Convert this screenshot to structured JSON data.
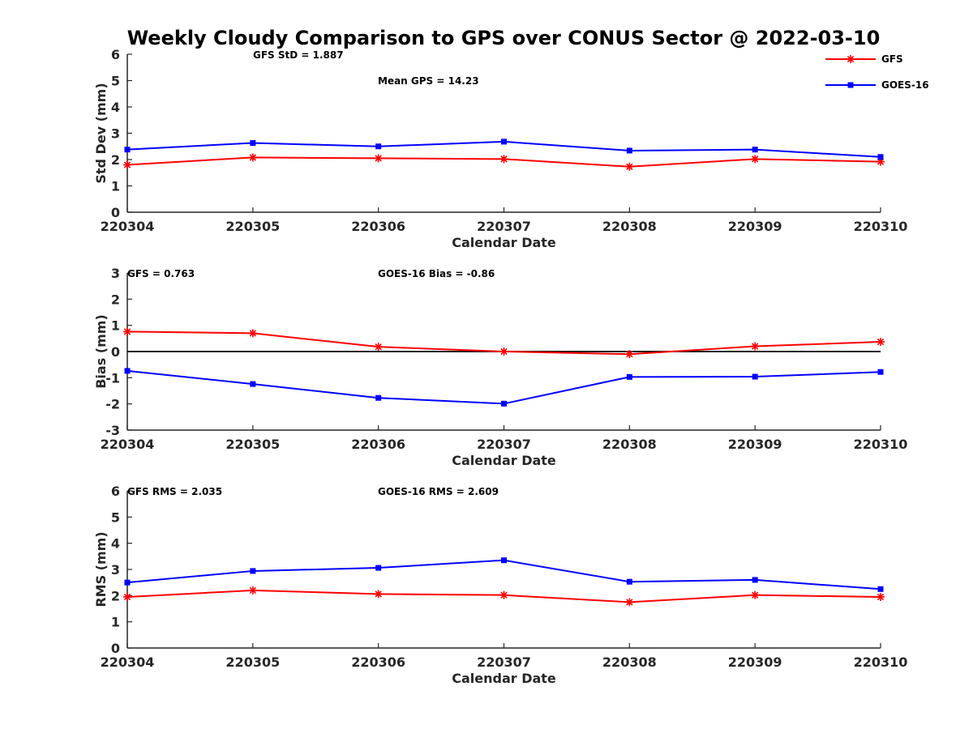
{
  "chart_data": {
    "title": "Weekly Cloudy Comparison to GPS over CONUS Sector @ 2022-03-10",
    "legend": {
      "position": "top-right",
      "entries": [
        {
          "name": "GFS",
          "color": "#ff0000",
          "marker": "star"
        },
        {
          "name": "GOES-16",
          "color": "#0000ff",
          "marker": "square"
        }
      ]
    },
    "panels": [
      {
        "type": "line",
        "xlabel": "Calendar Date",
        "ylabel": "Std Dev (mm)",
        "ylim": [
          0,
          6
        ],
        "yticks": [
          "0",
          "1",
          "2",
          "3",
          "4",
          "5",
          "6"
        ],
        "x": [
          "220304",
          "220305",
          "220306",
          "220307",
          "220308",
          "220309",
          "220310"
        ],
        "zero_line": false,
        "annotations": [
          "GFS StD = 1.887",
          "Mean GPS = 14.23"
        ],
        "series": [
          {
            "name": "GFS",
            "color": "#ff0000",
            "marker": "star",
            "values": [
              1.8,
              2.08,
              2.05,
              2.02,
              1.73,
              2.02,
              1.92
            ]
          },
          {
            "name": "GOES-16",
            "color": "#0000ff",
            "marker": "square",
            "values": [
              2.38,
              2.63,
              2.5,
              2.68,
              2.34,
              2.38,
              2.1
            ]
          }
        ]
      },
      {
        "type": "line",
        "xlabel": "Calendar Date",
        "ylabel": "Bias (mm)",
        "ylim": [
          -3,
          3
        ],
        "yticks": [
          "-3",
          "-2",
          "-1",
          "0",
          "1",
          "2",
          "3"
        ],
        "x": [
          "220304",
          "220305",
          "220306",
          "220307",
          "220308",
          "220309",
          "220310"
        ],
        "zero_line": true,
        "annotations": [
          "GFS = 0.763",
          "GOES-16 Bias  = -0.86"
        ],
        "series": [
          {
            "name": "GFS",
            "color": "#ff0000",
            "marker": "star",
            "values": [
              0.76,
              0.7,
              0.18,
              0.0,
              -0.1,
              0.2,
              0.37
            ]
          },
          {
            "name": "GOES-16",
            "color": "#0000ff",
            "marker": "square",
            "values": [
              -0.74,
              -1.24,
              -1.77,
              -1.99,
              -0.97,
              -0.96,
              -0.78
            ]
          }
        ]
      },
      {
        "type": "line",
        "xlabel": "Calendar Date",
        "ylabel": "RMS (mm)",
        "ylim": [
          0,
          6
        ],
        "yticks": [
          "0",
          "1",
          "2",
          "3",
          "4",
          "5",
          "6"
        ],
        "x": [
          "220304",
          "220305",
          "220306",
          "220307",
          "220308",
          "220309",
          "220310"
        ],
        "zero_line": false,
        "annotations": [
          "GFS RMS = 2.035",
          "GOES-16 RMS = 2.609"
        ],
        "series": [
          {
            "name": "GFS",
            "color": "#ff0000",
            "marker": "star",
            "values": [
              1.95,
              2.2,
              2.06,
              2.02,
              1.75,
              2.02,
              1.95
            ]
          },
          {
            "name": "GOES-16",
            "color": "#0000ff",
            "marker": "square",
            "values": [
              2.5,
              2.94,
              3.06,
              3.35,
              2.53,
              2.6,
              2.25
            ]
          }
        ]
      }
    ]
  }
}
